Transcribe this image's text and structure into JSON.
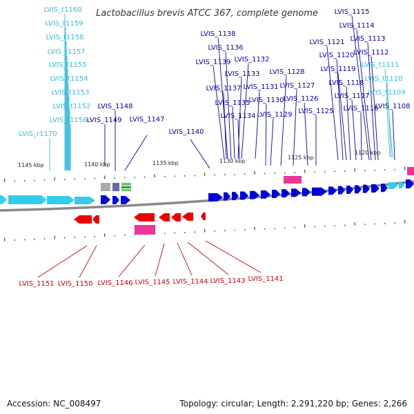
{
  "title": "Lactobacillus brevis ATCC 367, complete genome",
  "colors": {
    "forward_cds": "#0000dd",
    "reverse_cds": "#ee0000",
    "trna": "#33ccee",
    "rrna": "#ee3399",
    "label_forward": "#0000aa",
    "label_reverse": "#cc0000",
    "label_trna": "#33bbdd",
    "backbone": "#888888",
    "ticks": "#228822"
  },
  "kbp_ticks": [
    "1145 kbp",
    "1140 kbp",
    "1135 kbp",
    "1130 kbp",
    "1125 kbp",
    "1120 kbp"
  ],
  "labels_trna": [
    "LVIS_t1160",
    "LVIS_t1159",
    "LVIS_t1158",
    "LVIS_t1157",
    "LVIS_t1155",
    "LVIS_t1154",
    "LVIS_t1153",
    "LVIS_t1152",
    "LVIS_t1156",
    "LVIS_r1170",
    "LVIS_t1111",
    "LVIS_t1110",
    "LVIS_t1109"
  ],
  "labels_forward": [
    "LVIS_1148",
    "LVIS_1149",
    "LVIS_1147",
    "LVIS_1140",
    "LVIS_1138",
    "LVIS_1136",
    "LVIS_1139",
    "LVIS_1132",
    "LVIS_1133",
    "LVIS_1137",
    "LVIS_1131",
    "LVIS_1135",
    "LVIS_1130",
    "LVIS_1134",
    "LVIS_1129",
    "LVIS_1128",
    "LVIS_1127",
    "LVIS_1126",
    "LVIS_1125",
    "LVIS_1115",
    "LVIS_1114",
    "LVIS_1121",
    "LVIS_1113",
    "LVIS_1120",
    "LVIS_1112",
    "LVIS_1119",
    "LVIS_1118",
    "LVIS_1117",
    "LVIS_1116",
    "LVIS_1108"
  ],
  "labels_reverse": [
    "LVIS_1151",
    "LVIS_1150",
    "LVIS_1146",
    "LVIS_1145",
    "LVIS_1144",
    "LVIS_1143",
    "LVIS_1141"
  ],
  "accession": "Accession: NC_008497",
  "summary": "Topology: circular; Length: 2,291,220 bp; Genes: 2,266"
}
